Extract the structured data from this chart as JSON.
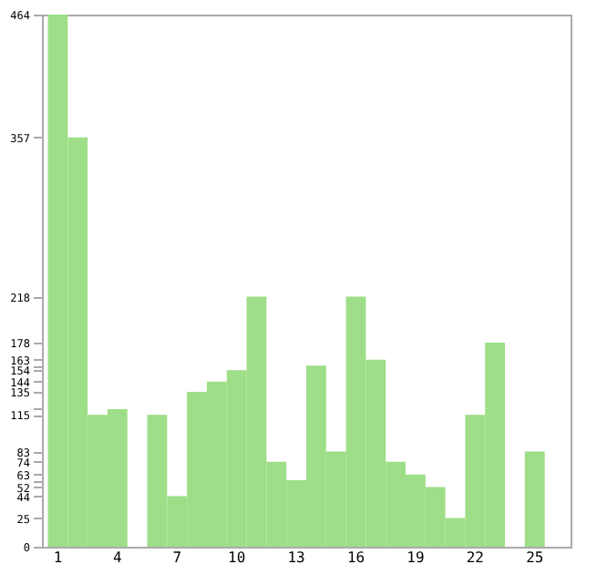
{
  "chart_data": {
    "type": "bar",
    "categories": [
      "1",
      null,
      null,
      "4",
      null,
      null,
      "7",
      null,
      null,
      "10",
      null,
      null,
      "13",
      null,
      null,
      "16",
      null,
      null,
      "19",
      null,
      null,
      "22",
      null,
      null,
      "25",
      null
    ],
    "values": [
      464,
      357,
      115,
      120,
      0,
      115,
      44,
      135,
      144,
      154,
      218,
      74,
      58,
      158,
      83,
      218,
      163,
      74,
      63,
      52,
      25,
      115,
      178,
      0,
      83,
      0
    ],
    "color": "#9ede88",
    "ylim": [
      0,
      464
    ],
    "yticks": [
      0,
      25,
      44,
      52,
      {
        "value": 58,
        "label": null
      },
      63,
      74,
      83,
      115,
      {
        "value": 120,
        "label": null
      },
      135,
      144,
      154,
      {
        "value": 158,
        "label": null
      },
      163,
      178,
      218,
      357,
      464
    ],
    "grid": false
  }
}
